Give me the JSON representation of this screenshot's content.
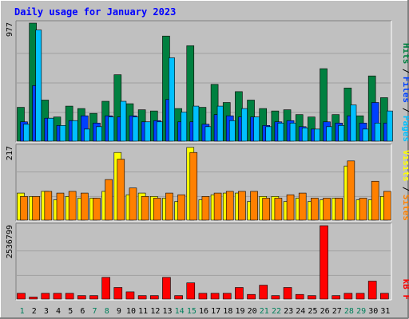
{
  "title": "Daily usage for January 2023",
  "colors": {
    "background": "#c0c0c0",
    "frame_light": "#ffffff",
    "frame_dark": "#808080",
    "title": "#0000ff",
    "hits": "#008040",
    "files": "#0040ff",
    "pages": "#00c0ff",
    "visits": "#ffff00",
    "sites": "#ff8000",
    "kb": "#ff0000",
    "day_weekday": "#000000",
    "day_weekend": "#00805c",
    "slash": "#000000"
  },
  "chart_data": [
    {
      "type": "bar",
      "panel": "hits-files-pages",
      "y_max_label": "977",
      "ylim": [
        0,
        977
      ],
      "legend": [
        {
          "label": "Hits",
          "color_key": "hits"
        },
        {
          "label": "Files",
          "color_key": "files"
        },
        {
          "label": "Pages",
          "color_key": "pages"
        }
      ],
      "categories": [
        "1",
        "2",
        "3",
        "4",
        "5",
        "6",
        "7",
        "8",
        "9",
        "10",
        "11",
        "12",
        "13",
        "14",
        "15",
        "16",
        "17",
        "18",
        "19",
        "20",
        "21",
        "22",
        "23",
        "24",
        "25",
        "26",
        "27",
        "28",
        "29",
        "30",
        "31"
      ],
      "series": [
        {
          "name": "Hits",
          "values": [
            280,
            977,
            340,
            200,
            290,
            270,
            230,
            330,
            550,
            310,
            260,
            250,
            870,
            270,
            790,
            280,
            470,
            320,
            410,
            340,
            270,
            250,
            260,
            220,
            200,
            600,
            220,
            440,
            210,
            540,
            360
          ]
        },
        {
          "name": "Files",
          "values": [
            160,
            460,
            190,
            130,
            170,
            210,
            150,
            210,
            200,
            210,
            160,
            170,
            345,
            160,
            160,
            140,
            220,
            210,
            200,
            200,
            130,
            160,
            170,
            120,
            100,
            160,
            150,
            210,
            150,
            320,
            150
          ]
        },
        {
          "name": "Pages",
          "values": [
            140,
            920,
            190,
            130,
            170,
            100,
            120,
            200,
            330,
            200,
            160,
            160,
            690,
            240,
            290,
            120,
            290,
            170,
            270,
            200,
            120,
            150,
            150,
            110,
            100,
            120,
            130,
            300,
            100,
            150,
            250
          ]
        }
      ]
    },
    {
      "type": "bar",
      "panel": "visits-sites",
      "y_max_label": "217",
      "ylim": [
        0,
        217
      ],
      "legend": [
        {
          "label": "Visits",
          "color_key": "visits"
        },
        {
          "label": "Sites",
          "color_key": "sites"
        }
      ],
      "categories": [
        "1",
        "2",
        "3",
        "4",
        "5",
        "6",
        "7",
        "8",
        "9",
        "10",
        "11",
        "12",
        "13",
        "14",
        "15",
        "16",
        "17",
        "18",
        "19",
        "20",
        "21",
        "22",
        "23",
        "24",
        "25",
        "26",
        "27",
        "28",
        "29",
        "30",
        "31"
      ],
      "series": [
        {
          "name": "Visits",
          "values": [
            80,
            70,
            85,
            60,
            70,
            65,
            65,
            85,
            200,
            75,
            80,
            70,
            65,
            55,
            215,
            60,
            75,
            80,
            80,
            55,
            70,
            70,
            55,
            65,
            55,
            60,
            65,
            160,
            60,
            60,
            70
          ]
        },
        {
          "name": "Sites",
          "values": [
            70,
            70,
            85,
            80,
            85,
            80,
            65,
            120,
            180,
            95,
            70,
            65,
            80,
            75,
            200,
            70,
            80,
            85,
            85,
            85,
            65,
            65,
            75,
            80,
            65,
            65,
            65,
            175,
            65,
            115,
            85
          ]
        }
      ]
    },
    {
      "type": "bar",
      "panel": "kbytes",
      "y_max_label": "2536799",
      "ylim": [
        0,
        2536799
      ],
      "legend": [
        {
          "label": "kB F",
          "color_key": "kb"
        }
      ],
      "categories": [
        "1",
        "2",
        "3",
        "4",
        "5",
        "6",
        "7",
        "8",
        "9",
        "10",
        "11",
        "12",
        "13",
        "14",
        "15",
        "16",
        "17",
        "18",
        "19",
        "20",
        "21",
        "22",
        "23",
        "24",
        "25",
        "26",
        "27",
        "28",
        "29",
        "30",
        "31"
      ],
      "series": [
        {
          "name": "kB F",
          "values": [
            200000,
            70000,
            200000,
            200000,
            200000,
            120000,
            120000,
            750000,
            400000,
            250000,
            120000,
            120000,
            750000,
            120000,
            560000,
            200000,
            200000,
            200000,
            400000,
            160000,
            480000,
            120000,
            400000,
            160000,
            120000,
            2536799,
            120000,
            200000,
            200000,
            620000,
            200000
          ]
        }
      ]
    }
  ],
  "day_labels": [
    "1",
    "2",
    "3",
    "4",
    "5",
    "6",
    "7",
    "8",
    "9",
    "10",
    "11",
    "12",
    "13",
    "14",
    "15",
    "16",
    "17",
    "18",
    "19",
    "20",
    "21",
    "22",
    "23",
    "24",
    "25",
    "26",
    "27",
    "28",
    "29",
    "30",
    "31"
  ],
  "weekend_days": [
    1,
    7,
    8,
    14,
    15,
    21,
    22,
    28,
    29
  ]
}
